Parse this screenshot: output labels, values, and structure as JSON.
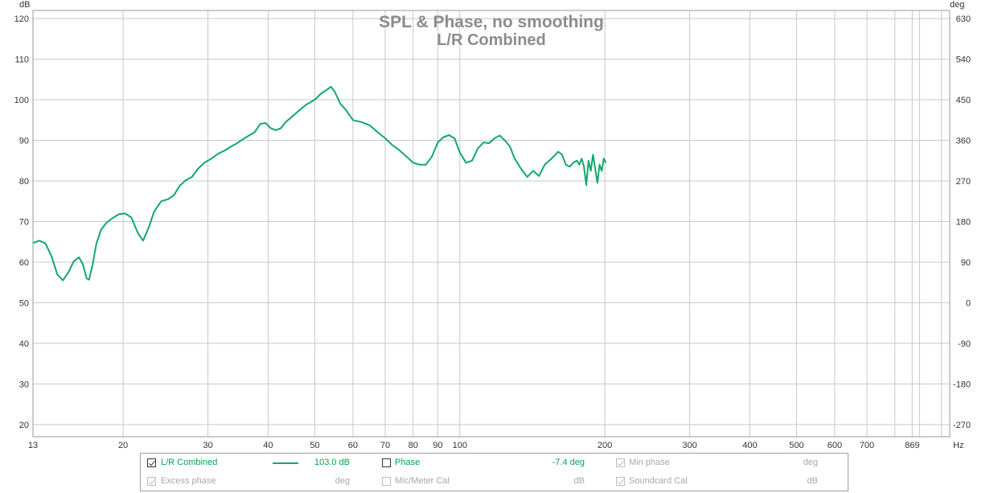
{
  "chart_data": {
    "type": "line",
    "title": "SPL & Phase, no smoothing",
    "subtitle": "L/R Combined",
    "y_left_unit": "dB",
    "y_right_unit": "deg",
    "x_unit": "Hz",
    "x_scale": "log",
    "xlim": [
      13,
      1040
    ],
    "ylim": [
      17,
      122
    ],
    "y_right_lim": [
      -297,
      648
    ],
    "grid": true,
    "x_ticks": [
      13,
      20,
      30,
      40,
      50,
      60,
      70,
      80,
      90,
      100,
      200,
      300,
      400,
      500,
      600,
      700,
      869
    ],
    "x_tick_labels": [
      "13",
      "20",
      "30",
      "40",
      "50",
      "60",
      "70",
      "80",
      "90",
      "100",
      "200",
      "300",
      "400",
      "500",
      "600",
      "700",
      "869"
    ],
    "x_minor_grid": [
      800,
      900,
      1000
    ],
    "y_left_ticks": [
      20,
      30,
      40,
      50,
      60,
      70,
      80,
      90,
      100,
      110,
      120
    ],
    "y_left_tick_labels": [
      "20",
      "30",
      "40",
      "50",
      "60",
      "70",
      "80",
      "90",
      "100",
      "110",
      "120"
    ],
    "y_right_ticks": [
      -270,
      -180,
      -90,
      0,
      90,
      180,
      270,
      360,
      450,
      540,
      630
    ],
    "y_right_tick_labels": [
      "-270",
      "-180",
      "-90",
      "0",
      "90",
      "180",
      "270",
      "360",
      "450",
      "540",
      "630"
    ],
    "series": [
      {
        "name": "L/R Combined",
        "color": "#12a86a",
        "x": [
          13,
          13.4,
          13.8,
          14.2,
          14.6,
          15.0,
          15.4,
          15.8,
          16.2,
          16.5,
          16.8,
          17.0,
          17.3,
          17.6,
          18.0,
          18.5,
          19.0,
          19.6,
          20.2,
          20.8,
          21.5,
          22.0,
          22.6,
          23.2,
          24.0,
          24.8,
          25.5,
          26.2,
          27.0,
          27.8,
          28.6,
          29.5,
          30.5,
          31.5,
          32.5,
          33.5,
          34.5,
          35.5,
          36.5,
          37.5,
          38.5,
          39.5,
          40.5,
          41.5,
          42.5,
          43.5,
          44.5,
          46.0,
          48.0,
          50.0,
          51.5,
          53.0,
          54.0,
          55.0,
          56.5,
          58.0,
          60.0,
          62.5,
          65.0,
          67.5,
          70.0,
          72.5,
          75.0,
          77.5,
          80.0,
          82.5,
          85.0,
          87.5,
          90.0,
          92.5,
          95.0,
          97.5,
          100,
          103,
          106,
          109,
          112,
          115,
          118,
          121,
          124,
          127,
          130,
          134,
          138,
          142,
          146,
          150,
          155,
          160,
          163,
          166,
          169,
          172,
          175,
          177,
          179,
          181,
          183,
          185,
          187,
          189,
          191,
          193,
          195,
          197,
          199,
          201
        ],
        "y": [
          64.7,
          65.3,
          64.6,
          61.5,
          57.0,
          55.5,
          57.5,
          60.2,
          61.2,
          59.5,
          56.0,
          55.7,
          59.5,
          64.5,
          68.0,
          69.8,
          70.8,
          71.8,
          72.0,
          71.0,
          67.0,
          65.3,
          68.5,
          72.5,
          75.0,
          75.5,
          76.5,
          78.8,
          80.2,
          81.0,
          83.0,
          84.5,
          85.5,
          86.7,
          87.5,
          88.5,
          89.3,
          90.3,
          91.2,
          92.0,
          94.0,
          94.3,
          93.0,
          92.5,
          93.0,
          94.5,
          95.5,
          97.0,
          98.8,
          100.0,
          101.5,
          102.5,
          103.2,
          102.0,
          99.0,
          97.5,
          95.0,
          94.5,
          93.7,
          92.0,
          90.5,
          88.8,
          87.5,
          86.0,
          84.5,
          84.0,
          84.0,
          86.0,
          89.5,
          90.8,
          91.3,
          90.5,
          87.0,
          84.5,
          85.0,
          88.0,
          89.5,
          89.3,
          90.5,
          91.2,
          90.0,
          88.5,
          85.5,
          83.0,
          81.0,
          82.5,
          81.2,
          84.0,
          85.5,
          87.2,
          86.5,
          84.0,
          83.5,
          84.5,
          85.0,
          84.0,
          85.5,
          83.5,
          79.0,
          85.0,
          82.5,
          86.5,
          83.0,
          79.5,
          84.0,
          82.5,
          85.5,
          84.5
        ]
      }
    ]
  },
  "legend": {
    "rows": [
      {
        "left": {
          "label": "L/R Combined",
          "checked": true,
          "enabled": true,
          "value": "103.0 dB"
        },
        "middle": {
          "label": "Phase",
          "checked": false,
          "enabled": true,
          "value": "-7.4 deg"
        },
        "right": {
          "label": "Min phase",
          "checked": true,
          "enabled": false,
          "value": "deg"
        }
      },
      {
        "left": {
          "label": "Excess phase",
          "checked": true,
          "enabled": false,
          "value": "deg"
        },
        "middle": {
          "label": "Mic/Meter Cal",
          "checked": false,
          "enabled": false,
          "value": "dB"
        },
        "right": {
          "label": "Soundcard Cal",
          "checked": true,
          "enabled": false,
          "value": "dB"
        }
      }
    ]
  }
}
